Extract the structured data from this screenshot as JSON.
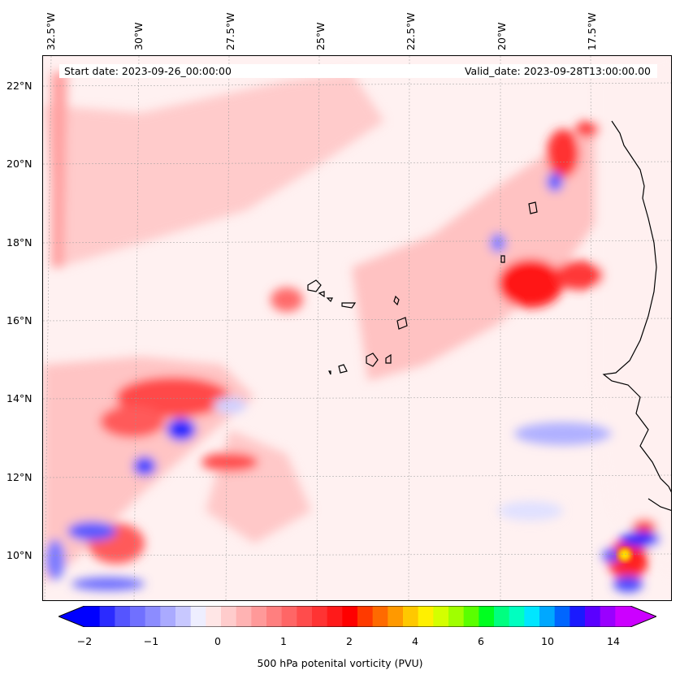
{
  "header": {
    "start_date": "Start date: 2023-09-26_00:00:00",
    "valid_date": "Valid_date: 2023-09-28T13:00:00.00"
  },
  "axes": {
    "lon_labels": [
      "32.5°W",
      "30°W",
      "27.5°W",
      "25°W",
      "22.5°W",
      "20°W",
      "17.5°W"
    ],
    "lat_labels": [
      "22°N",
      "20°N",
      "18°N",
      "16°N",
      "14°N",
      "12°N",
      "10°N"
    ]
  },
  "colorbar": {
    "label": "500 hPa potenital vorticity (PVU)",
    "ticks": [
      "−2",
      "−1",
      "0",
      "1",
      "2",
      "4",
      "6",
      "10",
      "14"
    ],
    "colors": [
      "#0000ff",
      "#2b2bff",
      "#5555ff",
      "#7070ff",
      "#8c8cff",
      "#aaaaff",
      "#c8c8ff",
      "#eeeeff",
      "#ffe6e6",
      "#ffcccc",
      "#ffb3b3",
      "#ff9999",
      "#ff7f7f",
      "#ff6666",
      "#ff4c4c",
      "#ff3333",
      "#ff1a1a",
      "#ff0000",
      "#ff3a00",
      "#ff6a00",
      "#ff9900",
      "#ffc800",
      "#fff000",
      "#d4ff00",
      "#a0ff00",
      "#5aff00",
      "#00ff20",
      "#00ff80",
      "#00ffc0",
      "#00e6ff",
      "#00a8ff",
      "#0066ff",
      "#1a1aff",
      "#5a00ff",
      "#9a00ff",
      "#cc00ff"
    ],
    "extend_min_color": "#0000ff",
    "extend_max_color": "#cc00ff"
  },
  "map": {
    "background_color": "#fff1f1",
    "positive_color": "#ffb0b0",
    "strong_positive_color": "#ff3030",
    "negative_color": "#d8d8ff",
    "strong_negative_color": "#2b2bff",
    "coastline_color": "#000000"
  }
}
